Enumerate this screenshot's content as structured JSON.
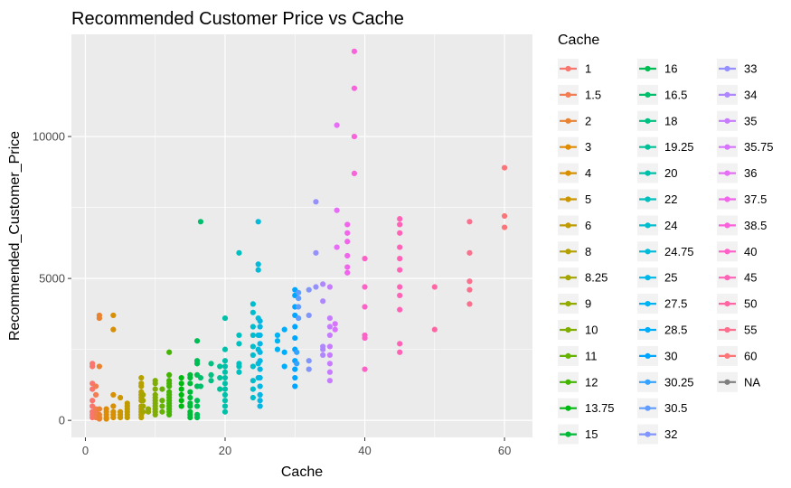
{
  "chart_data": {
    "type": "scatter",
    "title": "Recommended Customer Price vs Cache",
    "xlabel": "Cache",
    "ylabel": "Recommended_Customer_Price",
    "xlim": [
      -2,
      64
    ],
    "ylim": [
      -600,
      13600
    ],
    "x_ticks": [
      0,
      20,
      40,
      60
    ],
    "y_ticks": [
      0,
      5000,
      10000
    ],
    "y_tick_labels": [
      "0",
      "5000",
      "10000"
    ],
    "grid": true,
    "legend": {
      "title": "Cache",
      "position": "right",
      "entries": [
        {
          "label": "1",
          "color": "#F8766D"
        },
        {
          "label": "1.5",
          "color": "#F27D52"
        },
        {
          "label": "2",
          "color": "#EA8331"
        },
        {
          "label": "3",
          "color": "#E08B00"
        },
        {
          "label": "4",
          "color": "#D89000"
        },
        {
          "label": "5",
          "color": "#CC9600"
        },
        {
          "label": "6",
          "color": "#C09B00"
        },
        {
          "label": "8",
          "color": "#B4A000"
        },
        {
          "label": "8.25",
          "color": "#A3A500"
        },
        {
          "label": "9",
          "color": "#93AA00"
        },
        {
          "label": "10",
          "color": "#7FAE00"
        },
        {
          "label": "11",
          "color": "#67B200"
        },
        {
          "label": "12",
          "color": "#43B500"
        },
        {
          "label": "13.75",
          "color": "#00B812"
        },
        {
          "label": "15",
          "color": "#00BA38"
        },
        {
          "label": "16",
          "color": "#00BC55"
        },
        {
          "label": "16.5",
          "color": "#00BE6C"
        },
        {
          "label": "18",
          "color": "#00C082"
        },
        {
          "label": "19.25",
          "color": "#00C097"
        },
        {
          "label": "20",
          "color": "#00C0AA"
        },
        {
          "label": "22",
          "color": "#00BFBC"
        },
        {
          "label": "24",
          "color": "#00BDCD"
        },
        {
          "label": "24.75",
          "color": "#00BBDA"
        },
        {
          "label": "25",
          "color": "#00B8E7"
        },
        {
          "label": "27.5",
          "color": "#00B3F2"
        },
        {
          "label": "28.5",
          "color": "#00ADFA"
        },
        {
          "label": "30",
          "color": "#00A5FF"
        },
        {
          "label": "30.25",
          "color": "#35A2FF"
        },
        {
          "label": "30.5",
          "color": "#619CFF"
        },
        {
          "label": "32",
          "color": "#8195FF"
        },
        {
          "label": "33",
          "color": "#9590FF"
        },
        {
          "label": "34",
          "color": "#AE87FF"
        },
        {
          "label": "35",
          "color": "#C77CFF"
        },
        {
          "label": "35.75",
          "color": "#D774FD"
        },
        {
          "label": "36",
          "color": "#E56EF4"
        },
        {
          "label": "37.5",
          "color": "#F066EA"
        },
        {
          "label": "38.5",
          "color": "#FA62DB"
        },
        {
          "label": "40",
          "color": "#FF61C9"
        },
        {
          "label": "45",
          "color": "#FF63B6"
        },
        {
          "label": "50",
          "color": "#FF67A4"
        },
        {
          "label": "55",
          "color": "#FE6E8D"
        },
        {
          "label": "60",
          "color": "#FA7478"
        },
        {
          "label": "NA",
          "color": "#7F7F7F"
        }
      ]
    },
    "series": [
      {
        "name": "1",
        "x": 1,
        "y": [
          100,
          200,
          300,
          500,
          700,
          1100,
          1300,
          1900,
          2000
        ]
      },
      {
        "name": "1.5",
        "x": 1.5,
        "y": [
          100,
          200,
          300,
          400,
          900,
          1200
        ]
      },
      {
        "name": "2",
        "x": 2,
        "y": [
          50,
          100,
          200,
          400,
          1900,
          3600,
          3700
        ]
      },
      {
        "name": "3",
        "x": 3,
        "y": [
          50,
          100,
          200,
          300,
          400
        ]
      },
      {
        "name": "4",
        "x": 4,
        "y": [
          100,
          200,
          300,
          500,
          900,
          3200,
          3700
        ]
      },
      {
        "name": "5",
        "x": 5,
        "y": [
          100,
          200,
          300,
          800
        ]
      },
      {
        "name": "6",
        "x": 6,
        "y": [
          100,
          200,
          300,
          400,
          500,
          600
        ]
      },
      {
        "name": "8",
        "x": 8,
        "y": [
          100,
          200,
          300,
          400,
          500,
          700,
          800,
          900,
          1000,
          1200,
          1300,
          1500
        ]
      },
      {
        "name": "8.25",
        "x": 8.25,
        "y": [
          300,
          500,
          700,
          900
        ]
      },
      {
        "name": "9",
        "x": 9,
        "y": [
          300,
          400
        ]
      },
      {
        "name": "10",
        "x": 10,
        "y": [
          200,
          300,
          400,
          500,
          600,
          700,
          800,
          900,
          1100,
          1300,
          1400
        ]
      },
      {
        "name": "11",
        "x": 11,
        "y": [
          300,
          500,
          700,
          1100
        ]
      },
      {
        "name": "12",
        "x": 12,
        "y": [
          200,
          300,
          400,
          500,
          600,
          700,
          800,
          900,
          1000,
          1200,
          1300,
          1400,
          1600,
          2400
        ]
      },
      {
        "name": "13.75",
        "x": 13.75,
        "y": [
          500,
          700,
          900,
          1100,
          1300,
          1500
        ]
      },
      {
        "name": "15",
        "x": 15,
        "y": [
          100,
          200,
          300,
          500,
          600,
          800,
          1000,
          1300,
          1500,
          1600
        ]
      },
      {
        "name": "16",
        "x": 16,
        "y": [
          100,
          200,
          500,
          700,
          1200,
          1600,
          2000,
          2100,
          2800
        ]
      },
      {
        "name": "16.5",
        "x": 16.5,
        "y": [
          1200,
          1500,
          7000
        ]
      },
      {
        "name": "18",
        "x": 18,
        "y": [
          1400,
          1600,
          2000
        ]
      },
      {
        "name": "19.25",
        "x": 19.25,
        "y": [
          1100,
          1500,
          1900
        ]
      },
      {
        "name": "20",
        "x": 20,
        "y": [
          300,
          500,
          700,
          900,
          1100,
          1300,
          1500,
          1700,
          1900,
          2100,
          2500,
          3600
        ]
      },
      {
        "name": "22",
        "x": 22,
        "y": [
          1700,
          1900,
          2000,
          2700,
          3000,
          5900
        ]
      },
      {
        "name": "24",
        "x": 24,
        "y": [
          800,
          1100,
          1400,
          1900,
          2300,
          2600,
          3000,
          3300,
          3800,
          4100
        ]
      },
      {
        "name": "24.75",
        "x": 24.75,
        "y": [
          1500,
          2000,
          2500,
          3000,
          3600,
          5300,
          5500,
          7000
        ]
      },
      {
        "name": "25",
        "x": 25,
        "y": [
          500,
          700,
          900,
          1200,
          1500,
          1800,
          2100,
          2400,
          2700,
          3000,
          3300,
          3500
        ]
      },
      {
        "name": "27.5",
        "x": 27.5,
        "y": [
          2500,
          2800,
          3000
        ]
      },
      {
        "name": "28.5",
        "x": 28.5,
        "y": [
          1900,
          2400,
          3200
        ]
      },
      {
        "name": "30",
        "x": 30,
        "y": [
          1200,
          1500,
          1800,
          2100,
          2500,
          2900,
          3300,
          3700,
          4000,
          4400,
          4600
        ]
      },
      {
        "name": "30.25",
        "x": 30.25,
        "y": [
          2000,
          2400
        ]
      },
      {
        "name": "30.5",
        "x": 30.5,
        "y": [
          3600,
          4000,
          4300,
          4500
        ]
      },
      {
        "name": "32",
        "x": 32,
        "y": [
          1800,
          2100,
          3700,
          4600
        ]
      },
      {
        "name": "33",
        "x": 33,
        "y": [
          4700,
          5900,
          7700
        ]
      },
      {
        "name": "34",
        "x": 34,
        "y": [
          2300,
          2500,
          2600,
          4200,
          4800
        ]
      },
      {
        "name": "35",
        "x": 35,
        "y": [
          1400,
          1700,
          2000,
          2300,
          2600,
          3000,
          3300,
          3600,
          4700
        ]
      },
      {
        "name": "35.75",
        "x": 35.75,
        "y": [
          3200,
          3400
        ]
      },
      {
        "name": "36",
        "x": 36,
        "y": [
          6100,
          7400,
          10400
        ]
      },
      {
        "name": "37.5",
        "x": 37.5,
        "y": [
          5200,
          5400,
          5800,
          6300,
          6600,
          6900
        ]
      },
      {
        "name": "38.5",
        "x": 38.5,
        "y": [
          8700,
          10000,
          11700,
          13000
        ]
      },
      {
        "name": "40",
        "x": 40,
        "y": [
          1800,
          2900,
          3000,
          4000,
          4700,
          5700
        ]
      },
      {
        "name": "45",
        "x": 45,
        "y": [
          2400,
          2700,
          3900,
          4400,
          4700,
          5300,
          5700,
          6100,
          6600,
          6900,
          7100
        ]
      },
      {
        "name": "50",
        "x": 50,
        "y": [
          3200,
          4700
        ]
      },
      {
        "name": "55",
        "x": 55,
        "y": [
          4100,
          4600,
          4900,
          5900,
          7000
        ]
      },
      {
        "name": "60",
        "x": 60,
        "y": [
          6800,
          7200,
          8900
        ]
      }
    ]
  }
}
